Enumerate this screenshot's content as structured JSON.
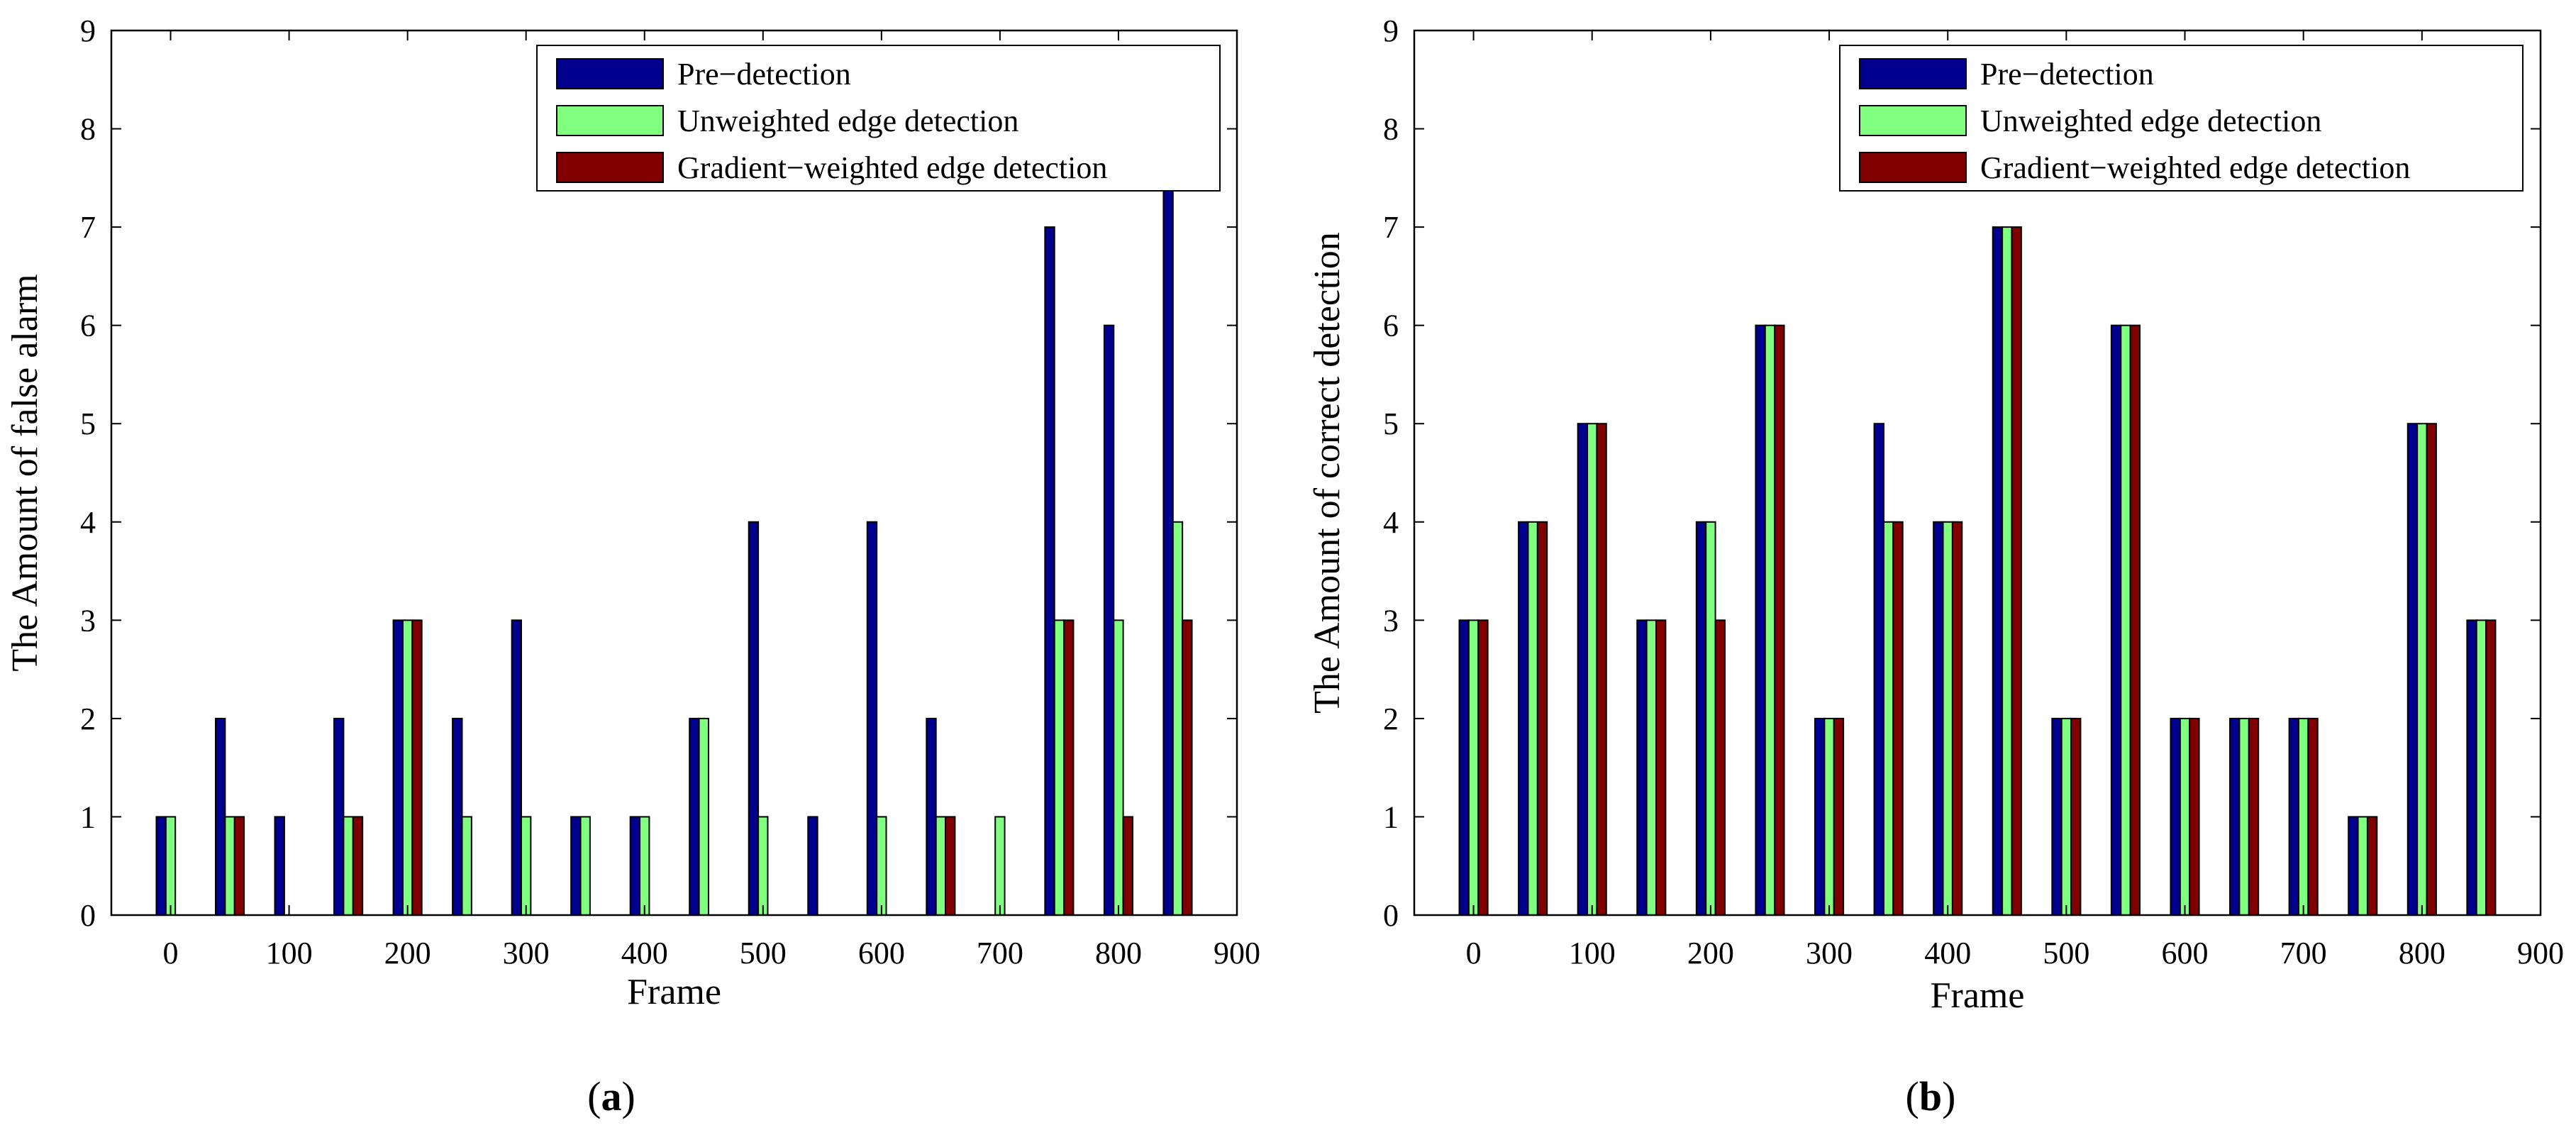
{
  "panels": [
    {
      "caption": "(a)",
      "caption_letter": "a",
      "chart_data": {
        "type": "bar",
        "title": "",
        "xlabel": "Frame",
        "ylabel": "The Amount of false alarm",
        "xlim": [
          -50,
          900
        ],
        "ylim": [
          0,
          9
        ],
        "x_ticks": [
          0,
          100,
          200,
          300,
          400,
          500,
          600,
          700,
          800,
          900
        ],
        "y_ticks": [
          0,
          1,
          2,
          3,
          4,
          5,
          6,
          7,
          8,
          9
        ],
        "x": [
          0,
          50,
          100,
          150,
          200,
          250,
          300,
          350,
          400,
          450,
          500,
          550,
          600,
          650,
          700,
          750,
          800,
          850
        ],
        "series": [
          {
            "name": "Pre−detection",
            "color": "#00008f",
            "values": [
              1,
              2,
              1,
              2,
              3,
              2,
              3,
              1,
              1,
              2,
              4,
              1,
              4,
              2,
              0,
              7,
              6,
              7.4
            ]
          },
          {
            "name": "Unweighted edge detection",
            "color": "#80ff80",
            "values": [
              1,
              1,
              0,
              1,
              3,
              1,
              1,
              1,
              1,
              2,
              1,
              0,
              1,
              1,
              1,
              3,
              3,
              4
            ]
          },
          {
            "name": "Gradient−weighted edge detection",
            "color": "#800000",
            "values": [
              0,
              1,
              0,
              1,
              3,
              0,
              0,
              0,
              0,
              0,
              0,
              0,
              0,
              1,
              0,
              3,
              1,
              3
            ]
          }
        ],
        "grid": false,
        "legend": "top-right"
      }
    },
    {
      "caption": "(b)",
      "caption_letter": "b",
      "chart_data": {
        "type": "bar",
        "title": "",
        "xlabel": "Frame",
        "ylabel": "The Amount of correct detection",
        "xlim": [
          -50,
          900
        ],
        "ylim": [
          0,
          9
        ],
        "x_ticks": [
          0,
          100,
          200,
          300,
          400,
          500,
          600,
          700,
          800,
          900
        ],
        "y_ticks": [
          0,
          1,
          2,
          3,
          4,
          5,
          6,
          7,
          8,
          9
        ],
        "x": [
          0,
          50,
          100,
          150,
          200,
          250,
          300,
          350,
          400,
          450,
          500,
          550,
          600,
          650,
          700,
          750,
          800,
          850
        ],
        "series": [
          {
            "name": "Pre−detection",
            "color": "#00008f",
            "values": [
              3,
              4,
              5,
              3,
              4,
              6,
              2,
              5,
              4,
              7,
              2,
              6,
              2,
              2,
              2,
              1,
              5,
              3
            ]
          },
          {
            "name": "Unweighted edge detection",
            "color": "#80ff80",
            "values": [
              3,
              4,
              5,
              3,
              4,
              6,
              2,
              4,
              4,
              7,
              2,
              6,
              2,
              2,
              2,
              1,
              5,
              3
            ]
          },
          {
            "name": "Gradient−weighted edge detection",
            "color": "#800000",
            "values": [
              3,
              4,
              5,
              3,
              3,
              6,
              2,
              4,
              4,
              7,
              2,
              6,
              2,
              2,
              2,
              1,
              5,
              3
            ]
          }
        ],
        "grid": false,
        "legend": "top-right"
      }
    }
  ]
}
